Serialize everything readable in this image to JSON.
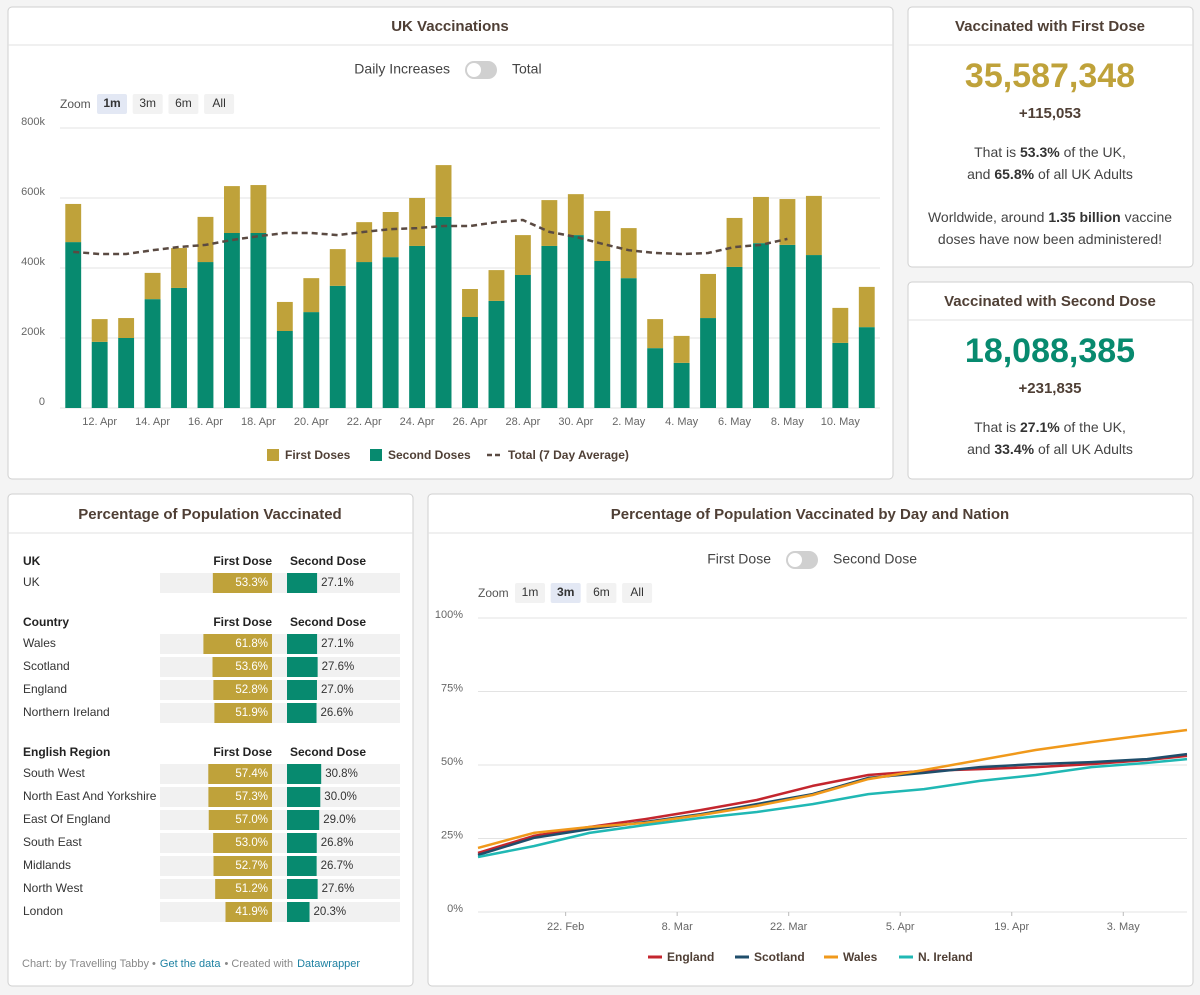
{
  "chart_data": [
    {
      "type": "bar",
      "title": "UK Vaccinations",
      "toggle": [
        "Daily Increases",
        "Total"
      ],
      "zoom": {
        "label": "Zoom",
        "options": [
          "1m",
          "3m",
          "6m",
          "All"
        ],
        "selected": "1m"
      },
      "categories": [
        null,
        "12. Apr",
        null,
        "14. Apr",
        null,
        "16. Apr",
        null,
        "18. Apr",
        null,
        "20. Apr",
        null,
        "22. Apr",
        null,
        "24. Apr",
        null,
        "26. Apr",
        null,
        "28. Apr",
        null,
        "30. Apr",
        null,
        "2. May",
        null,
        "4. May",
        null,
        "6. May",
        null,
        "8. May",
        null,
        "10. May",
        null
      ],
      "series": [
        {
          "name": "First Doses",
          "type": "bar",
          "color": "#bfa23a",
          "values": [
            109000,
            65000,
            57000,
            75000,
            114000,
            129000,
            134000,
            137000,
            83000,
            97000,
            105000,
            114000,
            129000,
            137000,
            148000,
            80000,
            88000,
            114000,
            131000,
            117000,
            143000,
            143000,
            83000,
            77000,
            126000,
            140000,
            132000,
            131000,
            169000,
            100000,
            115000
          ]
        },
        {
          "name": "Second Doses",
          "type": "bar",
          "color": "#078a6f",
          "values": [
            474000,
            189000,
            200000,
            311000,
            343000,
            417000,
            500000,
            500000,
            220000,
            274000,
            349000,
            417000,
            431000,
            463000,
            546000,
            260000,
            306000,
            380000,
            463000,
            494000,
            420000,
            371000,
            171000,
            129000,
            257000,
            403000,
            471000,
            466000,
            437000,
            186000,
            231000
          ]
        },
        {
          "name": "Total (7 Day Average)",
          "type": "line",
          "dashed": true,
          "color": "#5a4a42",
          "values": [
            446000,
            440000,
            440000,
            451000,
            460000,
            466000,
            480000,
            491000,
            500000,
            500000,
            494000,
            503000,
            511000,
            514000,
            520000,
            520000,
            531000,
            537000,
            503000,
            489000,
            469000,
            451000,
            443000,
            440000,
            443000,
            460000,
            466000,
            483000,
            null,
            null,
            null
          ]
        }
      ],
      "ylim": [
        0,
        800000
      ],
      "yticks": [
        0,
        {
          "value": 200000,
          "label": "200k"
        },
        {
          "value": 400000,
          "label": "400k"
        },
        {
          "value": 600000,
          "label": "600k"
        },
        {
          "value": 800000,
          "label": "800k"
        }
      ],
      "grid": true
    },
    {
      "type": "line",
      "title": "Percentage of Population Vaccinated by Day and Nation",
      "toggle": [
        "First Dose",
        "Second Dose"
      ],
      "zoom": {
        "label": "Zoom",
        "options": [
          "1m",
          "3m",
          "6m",
          "All"
        ],
        "selected": "3m"
      },
      "x": [
        "11. Feb",
        "18. Feb",
        "25. Feb",
        "4. Mar",
        "11. Mar",
        "18. Mar",
        "25. Mar",
        "1. Apr",
        "8. Apr",
        "15. Apr",
        "22. Apr",
        "29. Apr",
        "6. May",
        "11. May"
      ],
      "series": [
        {
          "name": "England",
          "color": "#c4262e",
          "values": [
            20.1,
            25.9,
            28.9,
            31.6,
            34.7,
            38.1,
            42.9,
            46.6,
            48.0,
            48.6,
            49.3,
            50.3,
            51.7,
            53.1
          ]
        },
        {
          "name": "Scotland",
          "color": "#1f4e6b",
          "values": [
            19.4,
            25.2,
            28.2,
            30.6,
            33.3,
            36.7,
            40.1,
            45.6,
            47.3,
            49.3,
            50.3,
            51.0,
            52.0,
            53.7
          ]
        },
        {
          "name": "Wales",
          "color": "#f0991b",
          "values": [
            21.8,
            26.9,
            28.9,
            30.3,
            33.0,
            36.1,
            39.8,
            45.2,
            48.3,
            51.7,
            55.1,
            57.8,
            60.2,
            61.9
          ]
        },
        {
          "name": "N. Ireland",
          "color": "#20b8b4",
          "values": [
            18.7,
            22.4,
            26.9,
            29.6,
            32.0,
            34.0,
            36.7,
            40.1,
            41.8,
            44.6,
            46.6,
            49.3,
            50.7,
            52.0
          ]
        }
      ],
      "xlim": [
        "11. Feb",
        "11. May"
      ],
      "xticks": [
        "22. Feb",
        "8. Mar",
        "22. Mar",
        "5. Apr",
        "19. Apr",
        "3. May"
      ],
      "ylim": [
        0,
        100
      ],
      "yticks": [
        {
          "value": 0,
          "label": "0%"
        },
        {
          "value": 25,
          "label": "25%"
        },
        {
          "value": 50,
          "label": "50%"
        },
        {
          "value": 75,
          "label": "75%"
        },
        {
          "value": 100,
          "label": "100%"
        }
      ],
      "grid": true
    }
  ],
  "cards": [
    {
      "title": "Vaccinated with First Dose",
      "value": "35,587,348",
      "change": "+115,053",
      "color": "#bfa23a",
      "paragraphs": [
        [
          [
            "That is ",
            "53.3%",
            " of the UK,"
          ],
          [
            "and ",
            "65.8%",
            " of all UK Adults"
          ]
        ],
        [
          [
            "Worldwide, around ",
            "1.35 billion",
            " vaccine"
          ],
          [
            "doses have now been administered!"
          ]
        ]
      ]
    },
    {
      "title": "Vaccinated with Second Dose",
      "value": "18,088,385",
      "change": "+231,835",
      "color": "#078a6f",
      "paragraphs": [
        [
          [
            "That is ",
            "27.1%",
            " of the UK,"
          ],
          [
            "and ",
            "33.4%",
            " of all UK Adults"
          ]
        ]
      ]
    }
  ],
  "table": {
    "title": "Percentage of Population Vaccinated",
    "sections": [
      {
        "header": "UK",
        "first_header": "First Dose",
        "second_header": "Second Dose",
        "rows": [
          {
            "name": "UK",
            "first": 53.3,
            "first_label": "53.3%",
            "second": 27.1,
            "second_label": "27.1%"
          }
        ]
      },
      {
        "header": "Country",
        "first_header": "First Dose",
        "second_header": "Second Dose",
        "rows": [
          {
            "name": "Wales",
            "first": 61.8,
            "first_label": "61.8%",
            "second": 27.1,
            "second_label": "27.1%"
          },
          {
            "name": "Scotland",
            "first": 53.6,
            "first_label": "53.6%",
            "second": 27.6,
            "second_label": "27.6%"
          },
          {
            "name": "England",
            "first": 52.8,
            "first_label": "52.8%",
            "second": 27.0,
            "second_label": "27.0%"
          },
          {
            "name": "Northern Ireland",
            "first": 51.9,
            "first_label": "51.9%",
            "second": 26.6,
            "second_label": "26.6%"
          }
        ]
      },
      {
        "header": "English Region",
        "first_header": "First Dose",
        "second_header": "Second Dose",
        "rows": [
          {
            "name": "South West",
            "first": 57.4,
            "first_label": "57.4%",
            "second": 30.8,
            "second_label": "30.8%"
          },
          {
            "name": "North East And Yorkshire",
            "first": 57.3,
            "first_label": "57.3%",
            "second": 30.0,
            "second_label": "30.0%"
          },
          {
            "name": "East Of England",
            "first": 57.0,
            "first_label": "57.0%",
            "second": 29.0,
            "second_label": "29.0%"
          },
          {
            "name": "South East",
            "first": 53.0,
            "first_label": "53.0%",
            "second": 26.8,
            "second_label": "26.8%"
          },
          {
            "name": "Midlands",
            "first": 52.7,
            "first_label": "52.7%",
            "second": 26.7,
            "second_label": "26.7%"
          },
          {
            "name": "North West",
            "first": 51.2,
            "first_label": "51.2%",
            "second": 27.6,
            "second_label": "27.6%"
          },
          {
            "name": "London",
            "first": 41.9,
            "first_label": "41.9%",
            "second": 20.3,
            "second_label": "20.3%"
          }
        ]
      }
    ],
    "footer": {
      "credit": "Chart: by Travelling Tabby •",
      "link": "Get the data",
      "created": "• Created with",
      "tool": "Datawrapper"
    }
  }
}
